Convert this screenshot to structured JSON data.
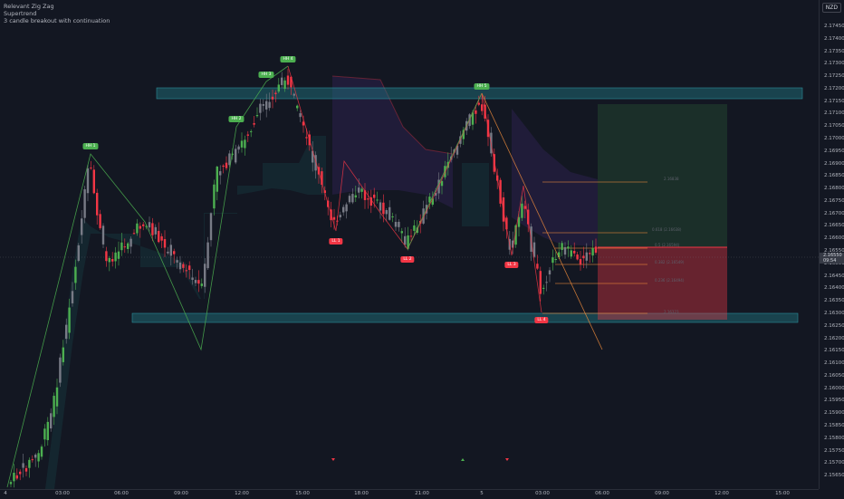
{
  "legend": {
    "line1": "Relevant Zig Zag",
    "line2": "Supertrend",
    "line3": "3 candle breakout with continuation"
  },
  "currency": "NZD",
  "price_ticks": [
    "2.17450",
    "2.17400",
    "2.17350",
    "2.17300",
    "2.17250",
    "2.17200",
    "2.17150",
    "2.17100",
    "2.17050",
    "2.17000",
    "2.16950",
    "2.16900",
    "2.16850",
    "2.16800",
    "2.16750",
    "2.16700",
    "2.16650",
    "2.16600",
    "2.16550",
    "2.16500",
    "2.16450",
    "2.16400",
    "2.16350",
    "2.16300",
    "2.16250",
    "2.16200",
    "2.16150",
    "2.16100",
    "2.16050",
    "2.16000",
    "2.15950",
    "2.15900",
    "2.15850",
    "2.15800",
    "2.15750",
    "2.15700",
    "2.15650"
  ],
  "time_ticks": [
    "4",
    "03:00",
    "06:00",
    "09:00",
    "12:00",
    "15:00",
    "18:00",
    "21:00",
    "5",
    "03:00",
    "06:00",
    "09:00",
    "12:00",
    "15:00"
  ],
  "current_price": {
    "value": "2.16550",
    "countdown": "09:54"
  },
  "swing_labels": {
    "hh1": "HH 1",
    "hh2": "HH 2",
    "hh3": "HH 3",
    "hh4": "HH 4",
    "hh5": "HH 5",
    "ll1": "LL 1",
    "ll2": "LL 2",
    "ll3": "LL 3",
    "ll4": "LL 4"
  },
  "position_labels": {
    "p1": "2.16838",
    "p2": "0.618 (2.16638)",
    "p3": "0.5 (2.16594)",
    "p4": "0.382 (2.16549)",
    "p5": "0.236 (2.16494)",
    "p6": "2.16323"
  },
  "colors": {
    "background": "#131722",
    "bull": "#4caf50",
    "bear": "#f23645",
    "neutral": "#787b86",
    "zone": "#1c5c66",
    "zigzag_bull": "#4caf50",
    "zigzag_bear": "#f23645"
  }
}
